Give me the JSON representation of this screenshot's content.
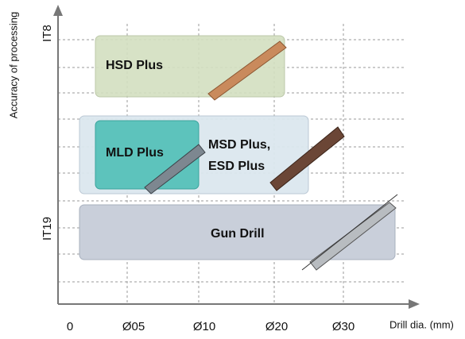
{
  "axes": {
    "y_label": "Accuracy of processing",
    "y_ticks": [
      "IT8",
      "IT19"
    ],
    "x_label": "Drill dia. (mm)",
    "x_ticks": [
      "0",
      "Ø05",
      "Ø10",
      "Ø20",
      "Ø30"
    ]
  },
  "regions": [
    {
      "lines": [
        "HSD Plus"
      ]
    },
    {
      "lines": [
        "MSD Plus,",
        "ESD Plus"
      ]
    },
    {
      "lines": [
        "MLD Plus"
      ]
    },
    {
      "lines": [
        "Gun Drill"
      ]
    }
  ]
}
